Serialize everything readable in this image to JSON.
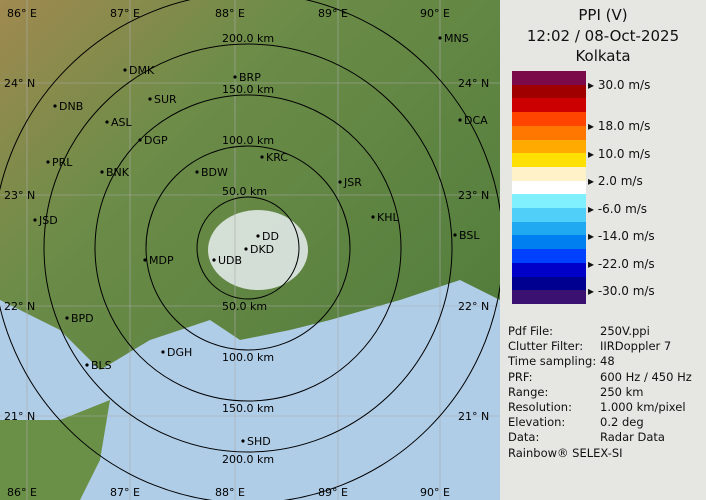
{
  "header": {
    "product": "PPI (V)",
    "datetime": "12:02 / 08-Oct-2025",
    "station": "Kolkata"
  },
  "legend": {
    "colors": [
      "#7a0a4a",
      "#a00000",
      "#cc0000",
      "#ff4400",
      "#ff7700",
      "#ffaa00",
      "#ffe000",
      "#fff2c8",
      "#ffffff",
      "#80f0ff",
      "#50d0f8",
      "#20a8f0",
      "#0080f0",
      "#0040ff",
      "#0000c8",
      "#000090",
      "#3a1070"
    ],
    "labels": [
      "30.0 m/s",
      "18.0 m/s",
      "10.0 m/s",
      "2.0 m/s",
      "-6.0 m/s",
      "-14.0 m/s",
      "-22.0 m/s",
      "-30.0 m/s"
    ]
  },
  "info": [
    {
      "key": "Pdf File:",
      "value": "250V.ppi"
    },
    {
      "key": "Clutter Filter:",
      "value": "IIRDoppler 7"
    },
    {
      "key": "Time sampling:",
      "value": "48"
    },
    {
      "key": "PRF:",
      "value": "600 Hz / 450 Hz"
    },
    {
      "key": "Range:",
      "value": "250 km"
    },
    {
      "key": "Resolution:",
      "value": "1.000 km/pixel"
    },
    {
      "key": "Elevation:",
      "value": "0.2 deg"
    },
    {
      "key": "Data:",
      "value": "Radar Data"
    }
  ],
  "credit": "Rainbow® SELEX-SI",
  "map": {
    "lon_labels": [
      "86° E",
      "87° E",
      "88° E",
      "89° E",
      "90° E"
    ],
    "lat_labels": [
      "24° N",
      "23° N",
      "22° N",
      "21° N"
    ],
    "rings": [
      "50.0 km",
      "100.0 km",
      "150.0 km",
      "200.0 km"
    ],
    "cities": [
      "MNS",
      "DMK",
      "BRP",
      "DNB",
      "SUR",
      "ASL",
      "DGP",
      "KRC",
      "PRL",
      "BNK",
      "BDW",
      "JSR",
      "KHL",
      "JSD",
      "DCA",
      "BSL",
      "DD",
      "DKD",
      "UDB",
      "MDP",
      "BPD",
      "DGH",
      "BLS",
      "SHD"
    ]
  }
}
